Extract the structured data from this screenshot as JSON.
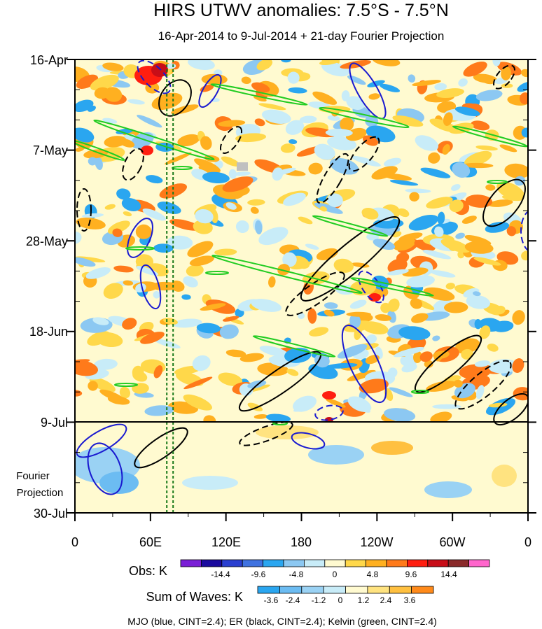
{
  "chart_data": {
    "type": "heatmap",
    "title": "HIRS UTWV anomalies: 7.5°S - 7.5°N",
    "subtitle": "16-Apr-2014 to 9-Jul-2014 + 21-day Fourier Projection",
    "x_axis": {
      "ticks": [
        "0",
        "60E",
        "120E",
        "180",
        "120W",
        "60W",
        "0"
      ],
      "tick_lon": [
        0,
        60,
        120,
        180,
        240,
        300,
        360
      ],
      "range_lon": [
        0,
        360
      ]
    },
    "y_axis": {
      "ticks": [
        "16-Apr",
        "7-May",
        "28-May",
        "18-Jun",
        "9-Jul",
        "30-Jul"
      ],
      "tick_day": [
        0,
        21,
        42,
        63,
        84,
        105
      ],
      "range_day": [
        0,
        105
      ],
      "projection_label_1": "Fourier",
      "projection_label_2": "Projection"
    },
    "projection_start": "9-Jul",
    "obs_colorbar": {
      "label": "Obs: K",
      "colors": [
        "#7a1fd6",
        "#1a0a9e",
        "#2a3fd0",
        "#3f72e0",
        "#2aa6f0",
        "#8cc8f2",
        "#c8ecf8",
        "#fffad0",
        "#ffd84a",
        "#ffb020",
        "#ff7a1a",
        "#ff1e10",
        "#c80e18",
        "#8a2a2a",
        "#ff66cc"
      ],
      "ticks": [
        "-14.4",
        "-9.6",
        "-4.8",
        "0",
        "4.8",
        "9.6",
        "14.4"
      ]
    },
    "waves_colorbar": {
      "label": "Sum of Waves: K",
      "colors": [
        "#2aa6f0",
        "#6cbcf2",
        "#9ad2f4",
        "#c8ecf8",
        "#fffad0",
        "#ffe380",
        "#ffc040",
        "#ff8a1a"
      ],
      "ticks": [
        "-3.6",
        "-2.4",
        "-1.2",
        "0",
        "1.2",
        "2.4",
        "3.6"
      ]
    },
    "legend": "MJO (blue, CINT=2.4); ER (black, CINT=2.4); Kelvin (green, CINT=2.4)",
    "series": [
      {
        "name": "MJO",
        "color": "#1a1ad0",
        "cint": 2.4
      },
      {
        "name": "ER",
        "color": "#000000",
        "cint": 2.4
      },
      {
        "name": "Kelvin",
        "color": "#22cc22",
        "cint": 2.4
      }
    ],
    "reference_lines_lon": [
      73,
      78
    ]
  }
}
